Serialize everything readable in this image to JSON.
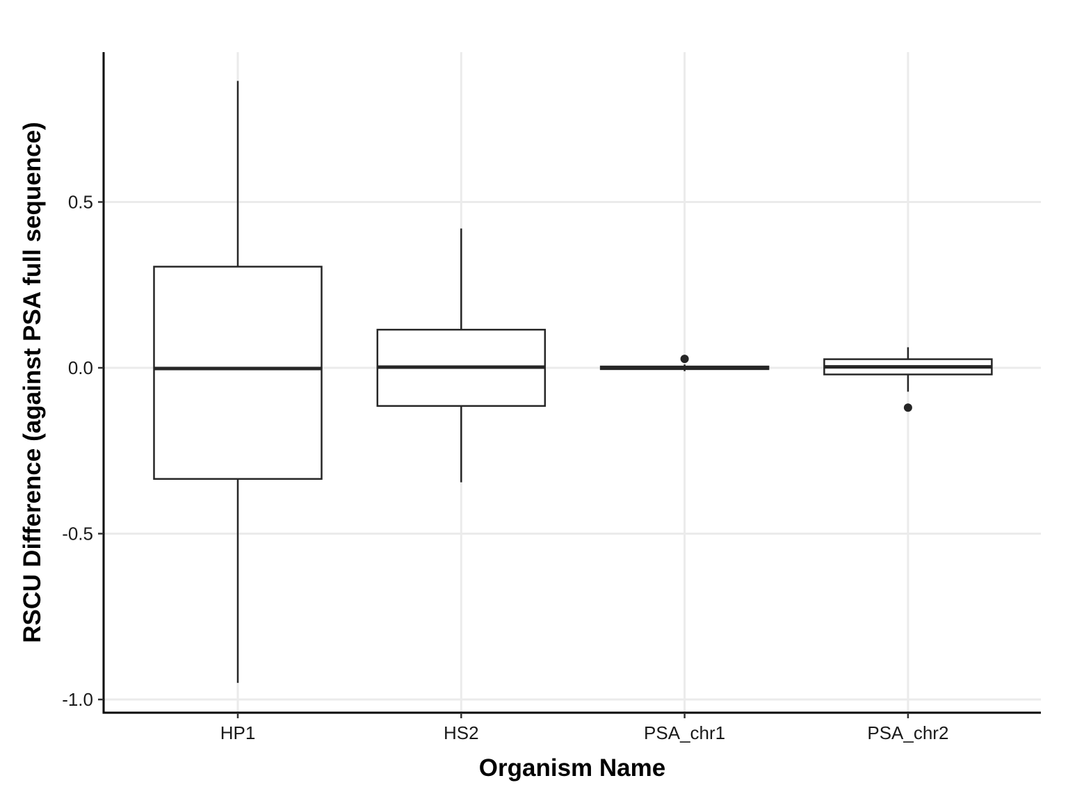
{
  "chart_data": {
    "type": "boxplot",
    "title": "",
    "xlabel": "Organism Name",
    "ylabel": "RSCU Difference (against PSA full sequence)",
    "ylim": [
      -1.05,
      0.95
    ],
    "yticks": [
      {
        "value": 0.5,
        "label": "0.5"
      },
      {
        "value": 0.0,
        "label": "0.0"
      },
      {
        "value": -0.5,
        "label": "-0.5"
      },
      {
        "value": -1.0,
        "label": "-1.0"
      }
    ],
    "grid": true,
    "legend": "none",
    "categories": [
      "HP1",
      "HS2",
      "PSA_chr1",
      "PSA_chr2"
    ],
    "boxes": [
      {
        "category": "HP1",
        "whisker_low": -0.95,
        "q1": -0.335,
        "median": -0.002,
        "q3": 0.305,
        "whisker_high": 0.865,
        "outliers": []
      },
      {
        "category": "HS2",
        "whisker_low": -0.345,
        "q1": -0.115,
        "median": 0.002,
        "q3": 0.115,
        "whisker_high": 0.42,
        "outliers": []
      },
      {
        "category": "PSA_chr1",
        "whisker_low": -0.01,
        "q1": -0.004,
        "median": -0.001,
        "q3": 0.004,
        "whisker_high": 0.01,
        "outliers": [
          0.027
        ]
      },
      {
        "category": "PSA_chr2",
        "whisker_low": -0.072,
        "q1": -0.02,
        "median": 0.003,
        "q3": 0.026,
        "whisker_high": 0.062,
        "outliers": [
          -0.12
        ]
      }
    ],
    "colors": {
      "box_stroke": "#262626",
      "grid": "#ebebeb",
      "axis": "#000000",
      "background": "#ffffff"
    }
  }
}
